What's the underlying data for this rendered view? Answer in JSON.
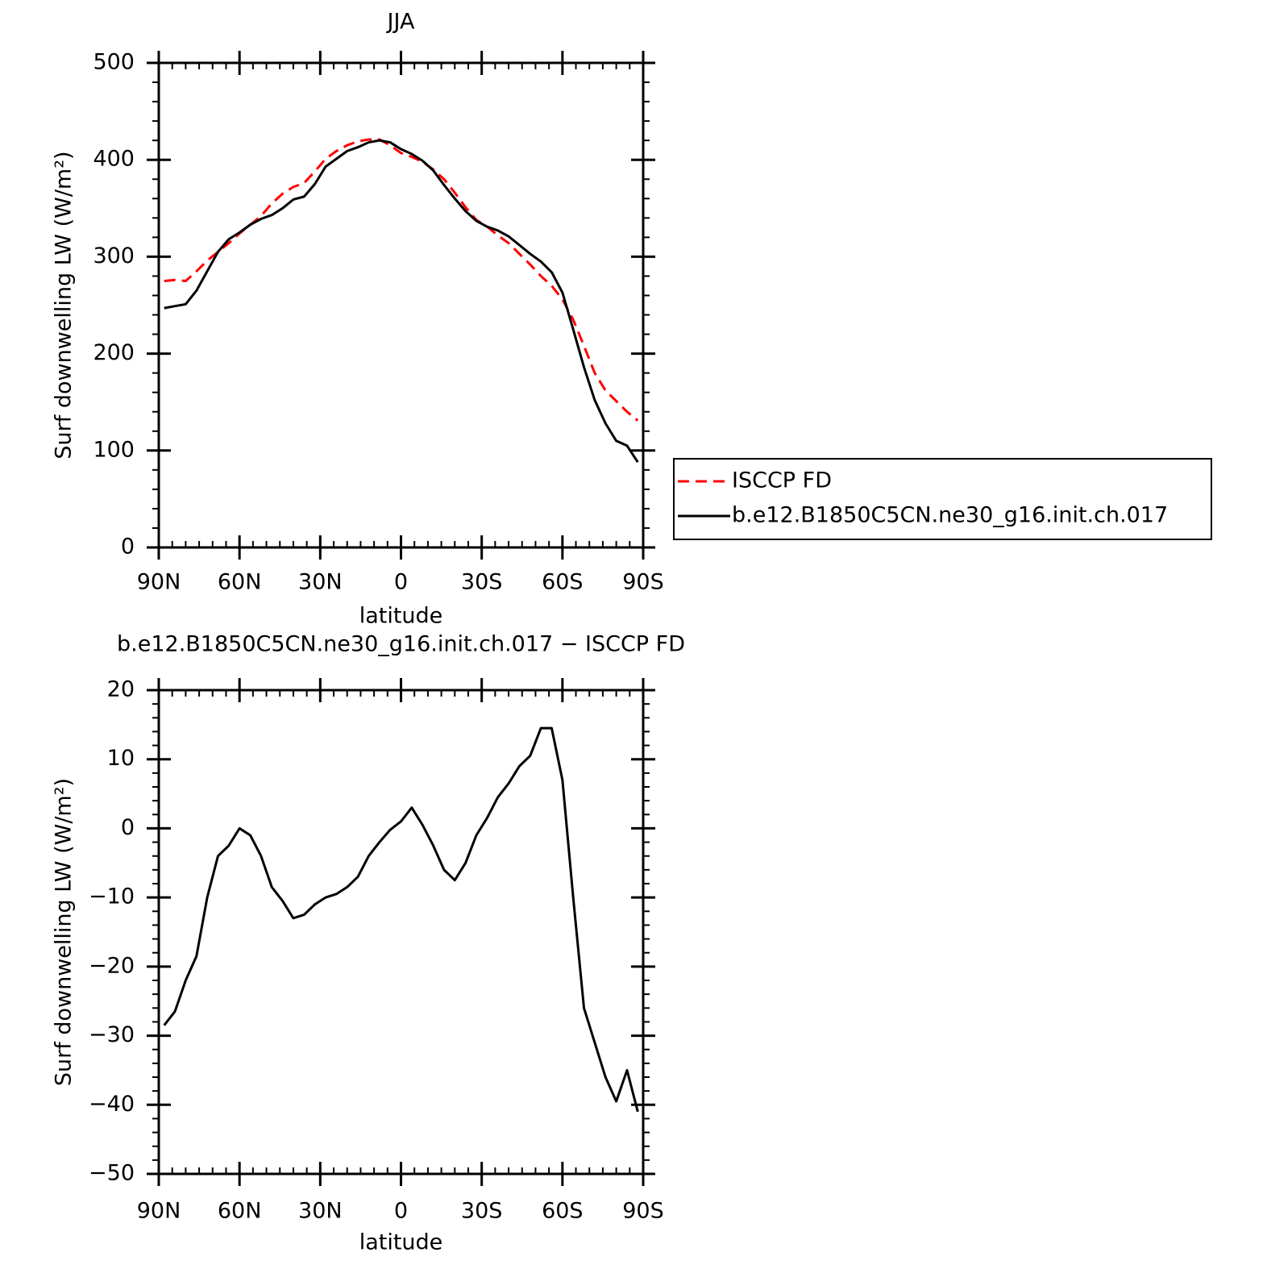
{
  "chart_data": [
    {
      "type": "line",
      "title": "JJA",
      "xlabel": "latitude",
      "ylabel": "Surf downwelling LW (W/m²)",
      "xlim": [
        90,
        -90
      ],
      "xticks": [
        {
          "value": 90,
          "label": "90N"
        },
        {
          "value": 60,
          "label": "60N"
        },
        {
          "value": 30,
          "label": "30N"
        },
        0,
        {
          "value": -30,
          "label": "30S"
        },
        {
          "value": -60,
          "label": "60S"
        },
        {
          "value": -90,
          "label": "90S"
        }
      ],
      "ylim": [
        0,
        500
      ],
      "yticks": [
        0,
        100,
        200,
        300,
        400,
        500
      ],
      "x_minor_divisions": 6,
      "y_minor_divisions": 5,
      "legend": "right",
      "x": [
        88,
        84,
        80,
        76,
        72,
        68,
        64,
        60,
        56,
        52,
        48,
        44,
        40,
        36,
        32,
        28,
        24,
        20,
        16,
        12,
        8,
        4,
        0,
        -4,
        -8,
        -12,
        -16,
        -20,
        -24,
        -28,
        -32,
        -36,
        -40,
        -44,
        -48,
        -52,
        -56,
        -60,
        -64,
        -68,
        -72,
        -76,
        -80,
        -84,
        -88
      ],
      "series": [
        {
          "name": "ISCCP FD",
          "color": "#ff0000",
          "dashed": true,
          "values": [
            275,
            276,
            275,
            285,
            296,
            305,
            314,
            324,
            333,
            342,
            355,
            365,
            372,
            376,
            388,
            401,
            409,
            415,
            419,
            421,
            421,
            415,
            407,
            403,
            398,
            390,
            380,
            366,
            351,
            338,
            331,
            322,
            314,
            303,
            292,
            280,
            270,
            256,
            235,
            208,
            180,
            162,
            151,
            140,
            131
          ]
        },
        {
          "name": "b.e12.B1850C5CN.ne30_g16.init.ch.017",
          "color": "#000000",
          "dashed": false,
          "values": [
            247,
            249,
            251,
            265,
            285,
            305,
            318,
            325,
            333,
            339,
            343,
            350,
            359,
            362,
            375,
            393,
            401,
            409,
            413,
            418,
            420,
            418,
            411,
            406,
            399,
            389,
            374,
            360,
            347,
            337,
            331,
            327,
            321,
            312,
            303,
            295,
            284,
            263,
            225,
            186,
            152,
            128,
            110,
            105,
            88
          ]
        }
      ]
    },
    {
      "type": "line",
      "title": "b.e12.B1850C5CN.ne30_g16.init.ch.017 − ISCCP FD",
      "xlabel": "latitude",
      "ylabel": "Surf downwelling LW (W/m²)",
      "xlim": [
        90,
        -90
      ],
      "xticks": [
        {
          "value": 90,
          "label": "90N"
        },
        {
          "value": 60,
          "label": "60N"
        },
        {
          "value": 30,
          "label": "30N"
        },
        0,
        {
          "value": -30,
          "label": "30S"
        },
        {
          "value": -60,
          "label": "60S"
        },
        {
          "value": -90,
          "label": "90S"
        }
      ],
      "ylim": [
        -50,
        20
      ],
      "yticks": [
        {
          "value": -50,
          "label": "−50"
        },
        {
          "value": -40,
          "label": "−40"
        },
        {
          "value": -30,
          "label": "−30"
        },
        {
          "value": -20,
          "label": "−20"
        },
        {
          "value": -10,
          "label": "−10"
        },
        0,
        10,
        20
      ],
      "x_minor_divisions": 6,
      "y_minor_divisions": 5,
      "x": [
        88,
        84,
        80,
        76,
        72,
        68,
        64,
        60,
        56,
        52,
        48,
        44,
        40,
        36,
        32,
        28,
        24,
        20,
        16,
        12,
        8,
        4,
        0,
        -4,
        -8,
        -12,
        -16,
        -20,
        -24,
        -28,
        -32,
        -36,
        -40,
        -44,
        -48,
        -52,
        -56,
        -60,
        -64,
        -68,
        -72,
        -76,
        -80,
        -84,
        -88
      ],
      "color": "#000000",
      "values": [
        -28.5,
        -26.5,
        -22,
        -18.5,
        -10,
        -4,
        -2.5,
        0,
        -1,
        -4,
        -8.5,
        -10.5,
        -13,
        -12.5,
        -11,
        -10,
        -9.5,
        -8.5,
        -7,
        -4,
        -2,
        -0.2,
        1,
        3,
        0.5,
        -2.5,
        -6,
        -7.5,
        -5,
        -1,
        1.5,
        4.5,
        6.5,
        9,
        10.5,
        14.5,
        14.5,
        7,
        -10,
        -26,
        -31,
        -36,
        -39.5,
        -35,
        -41
      ]
    }
  ]
}
